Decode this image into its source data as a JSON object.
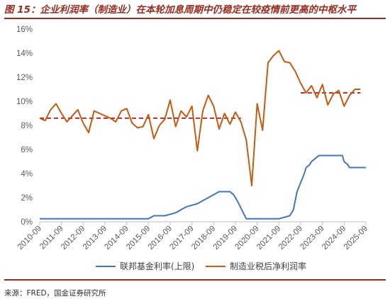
{
  "header": {
    "title": "图 15：企业利润率（制造业）在本轮加息周期中仍稳定在较疫情前更高的中枢水平"
  },
  "footer": {
    "source": "来源：FRED，国金证券研究所"
  },
  "colors": {
    "fed": "#4472c4",
    "margin": "#c55a11",
    "avg": "#c00000",
    "accent": "#9b2b1f"
  },
  "chart_data": {
    "type": "line",
    "x_tick_labels": [
      "2010-09",
      "2011-09",
      "2012-09",
      "2013-09",
      "2014-09",
      "2015-09",
      "2016-09",
      "2017-09",
      "2018-09",
      "2019-09",
      "2020-09",
      "2021-09",
      "2022-09",
      "2023-09",
      "2024-09",
      "2025-09"
    ],
    "y_tick_labels": [
      "0%",
      "2%",
      "4%",
      "6%",
      "8%",
      "10%",
      "12%",
      "14%",
      "16%"
    ],
    "ylim": [
      0,
      16
    ],
    "xlim": [
      "2010-09",
      "2025-09"
    ],
    "grid": false,
    "legend_position": "bottom",
    "series": [
      {
        "name": "联邦基金利率(上限)",
        "key": "fed",
        "points": [
          [
            "2010-09",
            0.25
          ],
          [
            "2011-09",
            0.25
          ],
          [
            "2012-09",
            0.25
          ],
          [
            "2013-09",
            0.25
          ],
          [
            "2014-09",
            0.25
          ],
          [
            "2015-09",
            0.25
          ],
          [
            "2015-12",
            0.5
          ],
          [
            "2016-06",
            0.5
          ],
          [
            "2016-12",
            0.75
          ],
          [
            "2017-03",
            1.0
          ],
          [
            "2017-06",
            1.25
          ],
          [
            "2017-12",
            1.5
          ],
          [
            "2018-03",
            1.75
          ],
          [
            "2018-06",
            2.0
          ],
          [
            "2018-09",
            2.25
          ],
          [
            "2018-12",
            2.5
          ],
          [
            "2019-06",
            2.5
          ],
          [
            "2019-08",
            2.25
          ],
          [
            "2019-09",
            2.0
          ],
          [
            "2019-10",
            1.75
          ],
          [
            "2020-03",
            0.25
          ],
          [
            "2021-09",
            0.25
          ],
          [
            "2022-03",
            0.5
          ],
          [
            "2022-05",
            1.0
          ],
          [
            "2022-06",
            1.75
          ],
          [
            "2022-07",
            2.5
          ],
          [
            "2022-09",
            3.25
          ],
          [
            "2022-11",
            4.0
          ],
          [
            "2022-12",
            4.5
          ],
          [
            "2023-02",
            4.75
          ],
          [
            "2023-03",
            5.0
          ],
          [
            "2023-05",
            5.25
          ],
          [
            "2023-07",
            5.5
          ],
          [
            "2024-08",
            5.5
          ],
          [
            "2024-09",
            5.0
          ],
          [
            "2024-11",
            4.75
          ],
          [
            "2024-12",
            4.5
          ],
          [
            "2025-09",
            4.5
          ]
        ]
      },
      {
        "name": "制造业税后净利润率",
        "key": "margin",
        "points": [
          [
            "2010-09",
            8.6
          ],
          [
            "2010-12",
            8.4
          ],
          [
            "2011-03",
            9.3
          ],
          [
            "2011-06",
            9.8
          ],
          [
            "2011-09",
            9.0
          ],
          [
            "2011-12",
            8.3
          ],
          [
            "2012-03",
            8.8
          ],
          [
            "2012-06",
            9.3
          ],
          [
            "2012-09",
            8.2
          ],
          [
            "2012-12",
            7.4
          ],
          [
            "2013-03",
            9.2
          ],
          [
            "2013-06",
            9.0
          ],
          [
            "2013-09",
            8.8
          ],
          [
            "2013-12",
            8.6
          ],
          [
            "2014-03",
            8.3
          ],
          [
            "2014-06",
            9.2
          ],
          [
            "2014-09",
            9.4
          ],
          [
            "2014-12",
            8.2
          ],
          [
            "2015-03",
            7.8
          ],
          [
            "2015-06",
            7.9
          ],
          [
            "2015-09",
            8.9
          ],
          [
            "2015-12",
            6.9
          ],
          [
            "2016-03",
            8.0
          ],
          [
            "2016-06",
            8.5
          ],
          [
            "2016-09",
            10.1
          ],
          [
            "2016-12",
            7.9
          ],
          [
            "2017-03",
            9.2
          ],
          [
            "2017-06",
            8.7
          ],
          [
            "2017-09",
            9.6
          ],
          [
            "2017-12",
            5.9
          ],
          [
            "2018-03",
            9.2
          ],
          [
            "2018-06",
            10.5
          ],
          [
            "2018-09",
            9.6
          ],
          [
            "2018-12",
            7.7
          ],
          [
            "2019-03",
            9.0
          ],
          [
            "2019-06",
            8.1
          ],
          [
            "2019-09",
            9.1
          ],
          [
            "2019-12",
            8.3
          ],
          [
            "2020-03",
            6.8
          ],
          [
            "2020-06",
            3.0
          ],
          [
            "2020-09",
            9.8
          ],
          [
            "2020-12",
            7.6
          ],
          [
            "2021-03",
            13.2
          ],
          [
            "2021-06",
            13.8
          ],
          [
            "2021-09",
            14.2
          ],
          [
            "2021-12",
            13.3
          ],
          [
            "2022-03",
            13.2
          ],
          [
            "2022-06",
            12.5
          ],
          [
            "2022-09",
            11.5
          ],
          [
            "2022-12",
            10.7
          ],
          [
            "2023-03",
            11.3
          ],
          [
            "2023-06",
            10.3
          ],
          [
            "2023-09",
            11.4
          ],
          [
            "2023-12",
            9.7
          ],
          [
            "2024-03",
            10.6
          ],
          [
            "2024-06",
            10.9
          ],
          [
            "2024-09",
            9.6
          ],
          [
            "2024-12",
            10.5
          ],
          [
            "2025-03",
            11.0
          ],
          [
            "2025-06",
            11.0
          ]
        ]
      }
    ],
    "reference_lines": [
      {
        "key": "avg",
        "style": "dashed",
        "from": "2010-09",
        "to": "2019-12",
        "value": 8.6
      },
      {
        "key": "avg",
        "style": "dashed",
        "from": "2022-09",
        "to": "2025-06",
        "value": 10.7
      }
    ]
  }
}
